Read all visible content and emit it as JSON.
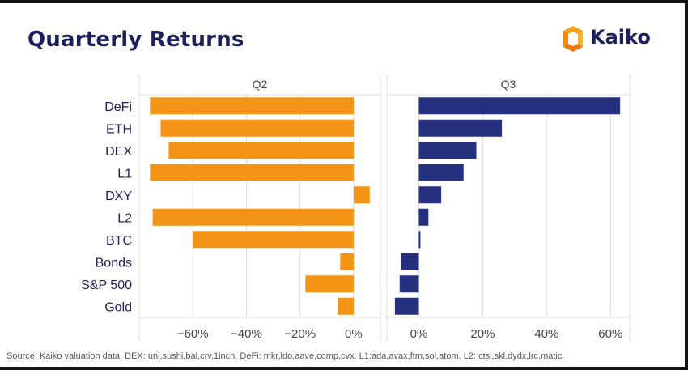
{
  "header": {
    "title": "Quarterly Returns",
    "logo_text": "Kaiko"
  },
  "footer": {
    "source": "Source: Kaiko valuation data. DEX: uni,sushi,bal,crv,1inch. DeFi: mkr,ldo,aave,comp,cvx. L1:ada,avax,ftm,sol,atom. L2: ctsi,skl,dydx,lrc,matic."
  },
  "colors": {
    "q2": "#f39416",
    "q3": "#25307e",
    "title": "#1b1f5c",
    "label": "#1b1f5c",
    "grid": "#dddddd",
    "logo_orange": "#f5a21b"
  },
  "chart_data": {
    "type": "bar",
    "orientation": "horizontal",
    "categories": [
      "DeFi",
      "ETH",
      "DEX",
      "L1",
      "DXY",
      "L2",
      "BTC",
      "Bonds",
      "S&P 500",
      "Gold"
    ],
    "panels": [
      {
        "name": "Q2",
        "values": [
          -76,
          -72,
          -69,
          -76,
          6,
          -75,
          -60,
          -5,
          -18,
          -6
        ],
        "xlim": [
          -80,
          10
        ],
        "ticks": [
          -60,
          -40,
          -20,
          0
        ],
        "tick_labels": [
          "−60%",
          "−40%",
          "−20%",
          "0%"
        ]
      },
      {
        "name": "Q3",
        "values": [
          63,
          26,
          18,
          14,
          7,
          3,
          0.5,
          -5.5,
          -6,
          -7.5
        ],
        "xlim": [
          -10,
          66
        ],
        "ticks": [
          0,
          20,
          40,
          60
        ],
        "tick_labels": [
          "0%",
          "20%",
          "40%",
          "60%"
        ]
      }
    ],
    "grid": "vertical gridlines"
  }
}
